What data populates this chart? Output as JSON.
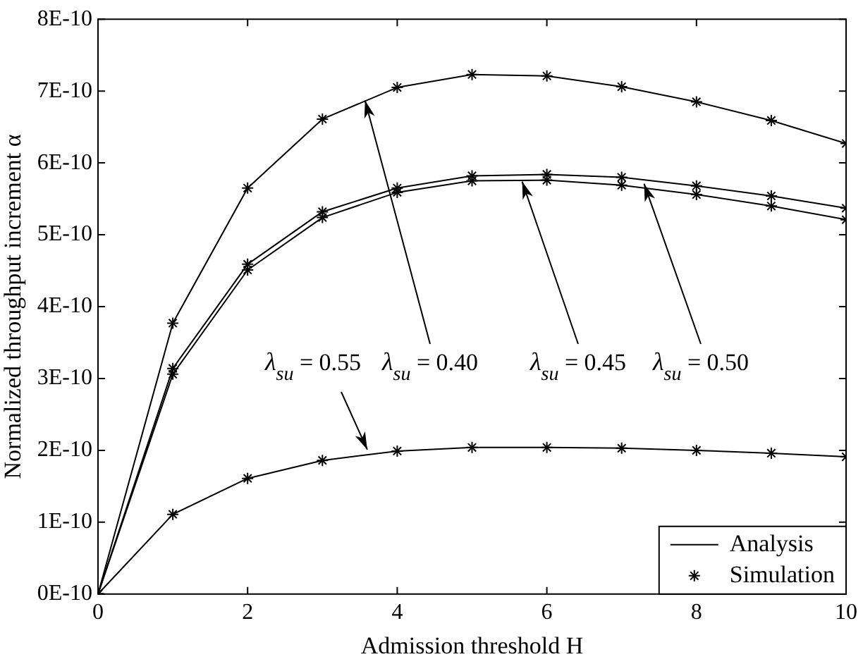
{
  "chart_data": {
    "type": "line",
    "xlabel": "Admission threshold H",
    "ylabel": "Normalized throughput increment α",
    "x": [
      0,
      1,
      2,
      3,
      4,
      5,
      6,
      7,
      8,
      9,
      10
    ],
    "series": [
      {
        "name": "Analysis",
        "marker": "none",
        "color": "#000000",
        "values": [
          0,
          3.77e-10,
          5.65e-10,
          6.61e-10,
          7.05e-10,
          7.23e-10,
          7.21e-10,
          7.06e-10,
          6.85e-10,
          6.59e-10,
          6.27e-10
        ]
      },
      {
        "marker": "none",
        "color": "#000000",
        "values": [
          0,
          3.14e-10,
          4.59e-10,
          5.32e-10,
          5.65e-10,
          5.82e-10,
          5.84e-10,
          5.8e-10,
          5.68e-10,
          5.54e-10,
          5.37e-10
        ]
      },
      {
        "marker": "none",
        "color": "#000000",
        "values": [
          0,
          3.06e-10,
          4.51e-10,
          5.24e-10,
          5.59e-10,
          5.75e-10,
          5.76e-10,
          5.69e-10,
          5.56e-10,
          5.4e-10,
          5.21e-10
        ]
      },
      {
        "marker": "none",
        "color": "#000000",
        "values": [
          0,
          1.11e-10,
          1.61e-10,
          1.86e-10,
          1.99e-10,
          2.04e-10,
          2.04e-10,
          2.03e-10,
          2e-10,
          1.96e-10,
          1.91e-10
        ]
      },
      {
        "name": "Simulation",
        "type": "scatter",
        "marker": "cross",
        "color": "#000000",
        "values": [
          0,
          3.77e-10,
          5.65e-10,
          6.61e-10,
          7.05e-10,
          7.23e-10,
          7.21e-10,
          7.06e-10,
          6.85e-10,
          6.59e-10,
          6.27e-10
        ]
      },
      {
        "type": "scatter",
        "marker": "cross",
        "color": "#000000",
        "values": [
          0,
          3.14e-10,
          4.59e-10,
          5.32e-10,
          5.65e-10,
          5.82e-10,
          5.84e-10,
          5.8e-10,
          5.68e-10,
          5.54e-10,
          5.37e-10
        ]
      },
      {
        "type": "scatter",
        "marker": "cross",
        "color": "#000000",
        "values": [
          0,
          3.06e-10,
          4.51e-10,
          5.24e-10,
          5.59e-10,
          5.75e-10,
          5.76e-10,
          5.69e-10,
          5.56e-10,
          5.4e-10,
          5.21e-10
        ]
      },
      {
        "type": "scatter",
        "marker": "cross",
        "color": "#000000",
        "values": [
          0,
          1.11e-10,
          1.61e-10,
          1.86e-10,
          1.99e-10,
          2.04e-10,
          2.04e-10,
          2.03e-10,
          2e-10,
          1.96e-10,
          1.91e-10
        ]
      }
    ],
    "xlim": [
      0,
      10
    ],
    "xticks": [
      0,
      2,
      4,
      6,
      8,
      10
    ],
    "ylim": [
      0,
      8e-10
    ],
    "yticks": [
      {
        "value": 0,
        "label": "0E-10"
      },
      {
        "value": 1e-10,
        "label": "1E-10"
      },
      {
        "value": 2e-10,
        "label": "2E-10"
      },
      {
        "value": 3e-10,
        "label": "3E-10"
      },
      {
        "value": 4e-10,
        "label": "4E-10"
      },
      {
        "value": 5e-10,
        "label": "5E-10"
      },
      {
        "value": 6e-10,
        "label": "6E-10"
      },
      {
        "value": 7e-10,
        "label": "7E-10"
      },
      {
        "value": 8e-10,
        "label": "8E-10"
      }
    ],
    "grid": false,
    "legend": "bottom right",
    "annotations": [
      {
        "text": "λ$_{su}$ = 0.55",
        "x": 3.6,
        "y": 2.01e-10
      },
      {
        "text": "λ$_{su}$ = 0.40",
        "x": 3.57,
        "y": 6.87e-10
      },
      {
        "text": "λ$_{su}$ = 0.45",
        "x": 5.67,
        "y": 5.74e-10
      },
      {
        "text": "λ$_{su}$ = 0.50",
        "x": 7.3,
        "y": 5.71e-10
      }
    ]
  }
}
